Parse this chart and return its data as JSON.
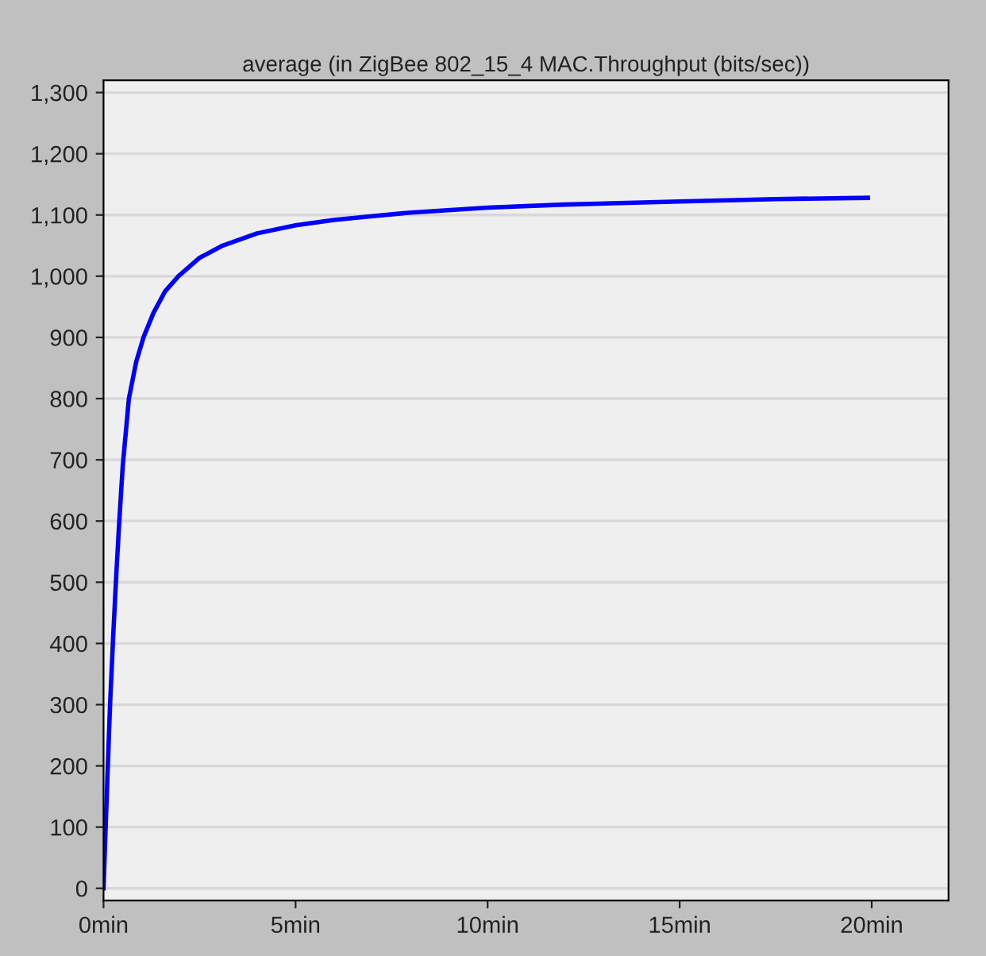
{
  "chart_data": {
    "type": "line",
    "title": "average (in ZigBee 802_15_4 MAC.Throughput (bits/sec))",
    "x": [
      0,
      0.05,
      0.1,
      0.17,
      0.25,
      0.33,
      0.41,
      0.5,
      0.66,
      0.85,
      1.04,
      1.3,
      1.6,
      1.95,
      2.5,
      3.1,
      4,
      5,
      6,
      7,
      8,
      10,
      12,
      15,
      17.5,
      19.9
    ],
    "series": [
      {
        "color": "#0000ff",
        "values": [
          0,
          90,
          180,
          300,
          410,
          510,
          600,
          690,
          800,
          860,
          900,
          940,
          975,
          1000,
          1030,
          1050,
          1070,
          1083,
          1092,
          1098,
          1104,
          1112,
          1117,
          1122,
          1126,
          1128
        ]
      }
    ],
    "xlim": [
      0,
      22
    ],
    "ylim": [
      -20,
      1320
    ],
    "xticks": [
      {
        "value": 0,
        "label": "0min"
      },
      {
        "value": 5,
        "label": "5min"
      },
      {
        "value": 10,
        "label": "10min"
      },
      {
        "value": 15,
        "label": "15min"
      },
      {
        "value": 20,
        "label": "20min"
      }
    ],
    "yticks": [
      {
        "value": 0,
        "label": "0"
      },
      {
        "value": 100,
        "label": "100"
      },
      {
        "value": 200,
        "label": "200"
      },
      {
        "value": 300,
        "label": "300"
      },
      {
        "value": 400,
        "label": "400"
      },
      {
        "value": 500,
        "label": "500"
      },
      {
        "value": 600,
        "label": "600"
      },
      {
        "value": 700,
        "label": "700"
      },
      {
        "value": 800,
        "label": "800"
      },
      {
        "value": 900,
        "label": "900"
      },
      {
        "value": 1000,
        "label": "1,000"
      },
      {
        "value": 1100,
        "label": "1,100"
      },
      {
        "value": 1200,
        "label": "1,200"
      },
      {
        "value": 1300,
        "label": "1,300"
      }
    ],
    "grid": "y",
    "marker": "none",
    "line_style": "solid"
  }
}
